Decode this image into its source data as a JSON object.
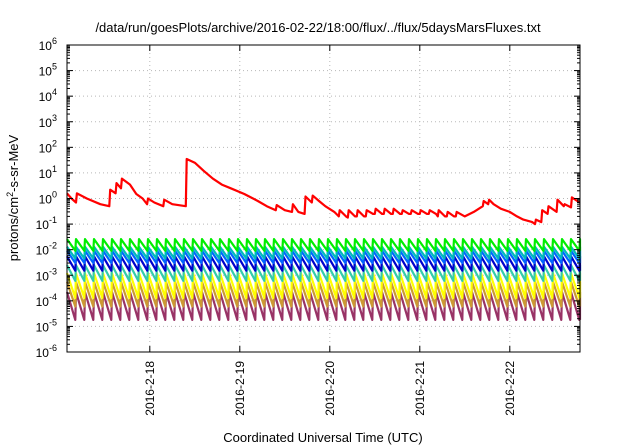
{
  "chart_data": {
    "type": "line",
    "title": "/data/run/goesPlots/archive/2016-02-22/18:00/flux/../flux/5daysMarsFluxes.txt",
    "xlabel": "Coordinated Universal Time (UTC)",
    "ylabel": {
      "base": "protons/cm",
      "sup": "2",
      "rest": "-s-sr-MeV"
    },
    "yscale": "log",
    "ylim_exp": [
      -6,
      6
    ],
    "yticks": [
      {
        "exp": -6,
        "base": "10",
        "sup": "-6"
      },
      {
        "exp": -5,
        "base": "10",
        "sup": "-5"
      },
      {
        "exp": -4,
        "base": "10",
        "sup": "-4"
      },
      {
        "exp": -3,
        "base": "10",
        "sup": "-3"
      },
      {
        "exp": -2,
        "base": "10",
        "sup": "-2"
      },
      {
        "exp": -1,
        "base": "10",
        "sup": "-1"
      },
      {
        "exp": 0,
        "base": "10",
        "sup": "0"
      },
      {
        "exp": 1,
        "base": "10",
        "sup": "1"
      },
      {
        "exp": 2,
        "base": "10",
        "sup": "2"
      },
      {
        "exp": 3,
        "base": "10",
        "sup": "3"
      },
      {
        "exp": 4,
        "base": "10",
        "sup": "4"
      },
      {
        "exp": 5,
        "base": "10",
        "sup": "5"
      },
      {
        "exp": 6,
        "base": "10",
        "sup": "6"
      }
    ],
    "xlim_day": [
      17.08,
      22.78
    ],
    "xticks": [
      {
        "day": 18,
        "label": "2016-2-18"
      },
      {
        "day": 19,
        "label": "2016-2-19"
      },
      {
        "day": 20,
        "label": "2016-2-20"
      },
      {
        "day": 21,
        "label": "2016-2-21"
      },
      {
        "day": 22,
        "label": "2016-2-22"
      }
    ],
    "grid": true,
    "series": [
      {
        "color": "#ff0000",
        "points": [
          [
            17.08,
            1.6
          ],
          [
            17.13,
            1.0
          ],
          [
            17.18,
            0.7
          ],
          [
            17.19,
            1.6
          ],
          [
            17.3,
            1.0
          ],
          [
            17.45,
            0.6
          ],
          [
            17.55,
            0.5
          ],
          [
            17.56,
            2.2
          ],
          [
            17.62,
            1.6
          ],
          [
            17.63,
            4.0
          ],
          [
            17.68,
            2.5
          ],
          [
            17.69,
            6.0
          ],
          [
            17.78,
            3.5
          ],
          [
            17.85,
            1.5
          ],
          [
            17.92,
            1.0
          ],
          [
            17.97,
            0.6
          ],
          [
            17.98,
            1.0
          ],
          [
            18.05,
            0.7
          ],
          [
            18.15,
            0.5
          ],
          [
            18.16,
            0.9
          ],
          [
            18.25,
            0.6
          ],
          [
            18.4,
            0.5
          ],
          [
            18.41,
            35
          ],
          [
            18.5,
            25
          ],
          [
            18.6,
            12
          ],
          [
            18.7,
            6
          ],
          [
            18.8,
            3.5
          ],
          [
            18.9,
            2.5
          ],
          [
            19.05,
            1.5
          ],
          [
            19.2,
            0.8
          ],
          [
            19.3,
            0.5
          ],
          [
            19.4,
            0.35
          ],
          [
            19.41,
            0.55
          ],
          [
            19.5,
            0.35
          ],
          [
            19.58,
            0.3
          ],
          [
            19.59,
            0.6
          ],
          [
            19.65,
            0.3
          ],
          [
            19.72,
            0.25
          ],
          [
            19.73,
            1.2
          ],
          [
            19.8,
            0.7
          ],
          [
            19.81,
            1.3
          ],
          [
            19.88,
            0.8
          ],
          [
            19.95,
            0.5
          ],
          [
            20.05,
            0.3
          ],
          [
            20.1,
            0.2
          ],
          [
            20.11,
            0.35
          ],
          [
            20.18,
            0.2
          ],
          [
            20.2,
            0.18
          ],
          [
            20.21,
            0.35
          ],
          [
            20.28,
            0.2
          ],
          [
            20.3,
            0.2
          ],
          [
            20.31,
            0.35
          ],
          [
            20.38,
            0.2
          ],
          [
            20.4,
            0.2
          ],
          [
            20.41,
            0.35
          ],
          [
            20.48,
            0.25
          ],
          [
            20.5,
            0.25
          ],
          [
            20.51,
            0.4
          ],
          [
            20.58,
            0.25
          ],
          [
            20.6,
            0.25
          ],
          [
            20.61,
            0.4
          ],
          [
            20.68,
            0.25
          ],
          [
            20.7,
            0.25
          ],
          [
            20.71,
            0.4
          ],
          [
            20.78,
            0.25
          ],
          [
            20.8,
            0.25
          ],
          [
            20.81,
            0.35
          ],
          [
            20.88,
            0.25
          ],
          [
            20.9,
            0.25
          ],
          [
            20.91,
            0.35
          ],
          [
            20.98,
            0.25
          ],
          [
            21.0,
            0.25
          ],
          [
            21.01,
            0.35
          ],
          [
            21.08,
            0.25
          ],
          [
            21.1,
            0.25
          ],
          [
            21.11,
            0.35
          ],
          [
            21.18,
            0.25
          ],
          [
            21.2,
            0.2
          ],
          [
            21.21,
            0.35
          ],
          [
            21.28,
            0.2
          ],
          [
            21.3,
            0.2
          ],
          [
            21.31,
            0.3
          ],
          [
            21.38,
            0.2
          ],
          [
            21.4,
            0.2
          ],
          [
            21.41,
            0.3
          ],
          [
            21.5,
            0.2
          ],
          [
            21.6,
            0.3
          ],
          [
            21.7,
            0.5
          ],
          [
            21.71,
            0.8
          ],
          [
            21.76,
            0.6
          ],
          [
            21.77,
            0.9
          ],
          [
            21.82,
            0.6
          ],
          [
            21.9,
            0.4
          ],
          [
            22.0,
            0.3
          ],
          [
            22.08,
            0.2
          ],
          [
            22.15,
            0.15
          ],
          [
            22.25,
            0.12
          ],
          [
            22.28,
            0.1
          ],
          [
            22.29,
            0.15
          ],
          [
            22.35,
            0.12
          ],
          [
            22.36,
            0.35
          ],
          [
            22.42,
            0.25
          ],
          [
            22.43,
            0.5
          ],
          [
            22.52,
            0.3
          ],
          [
            22.53,
            0.9
          ],
          [
            22.6,
            0.5
          ],
          [
            22.61,
            0.6
          ],
          [
            22.68,
            0.45
          ],
          [
            22.69,
            1.1
          ],
          [
            22.75,
            0.8
          ],
          [
            22.78,
            0.7
          ]
        ]
      },
      {
        "color": "#00ee00",
        "peak": 0.026,
        "trough": 0.009,
        "period": 0.1
      },
      {
        "color": "#00bbbb",
        "peak": 0.013,
        "trough": 0.0045,
        "period": 0.1
      },
      {
        "color": "#0066ff",
        "peak": 0.009,
        "trough": 0.003,
        "period": 0.1
      },
      {
        "color": "#0000cc",
        "peak": 0.0055,
        "trough": 0.0015,
        "period": 0.1
      },
      {
        "color": "#33ccaa",
        "peak": 0.0025,
        "trough": 0.0006,
        "period": 0.1
      },
      {
        "color": "#ffff00",
        "peak": 0.0012,
        "trough": 0.00013,
        "period": 0.1
      },
      {
        "color": "#cc9933",
        "peak": 0.00055,
        "trough": 6e-05,
        "period": 0.1
      },
      {
        "color": "#993366",
        "peak": 0.00022,
        "trough": 1.8e-05,
        "period": 0.1
      }
    ]
  }
}
